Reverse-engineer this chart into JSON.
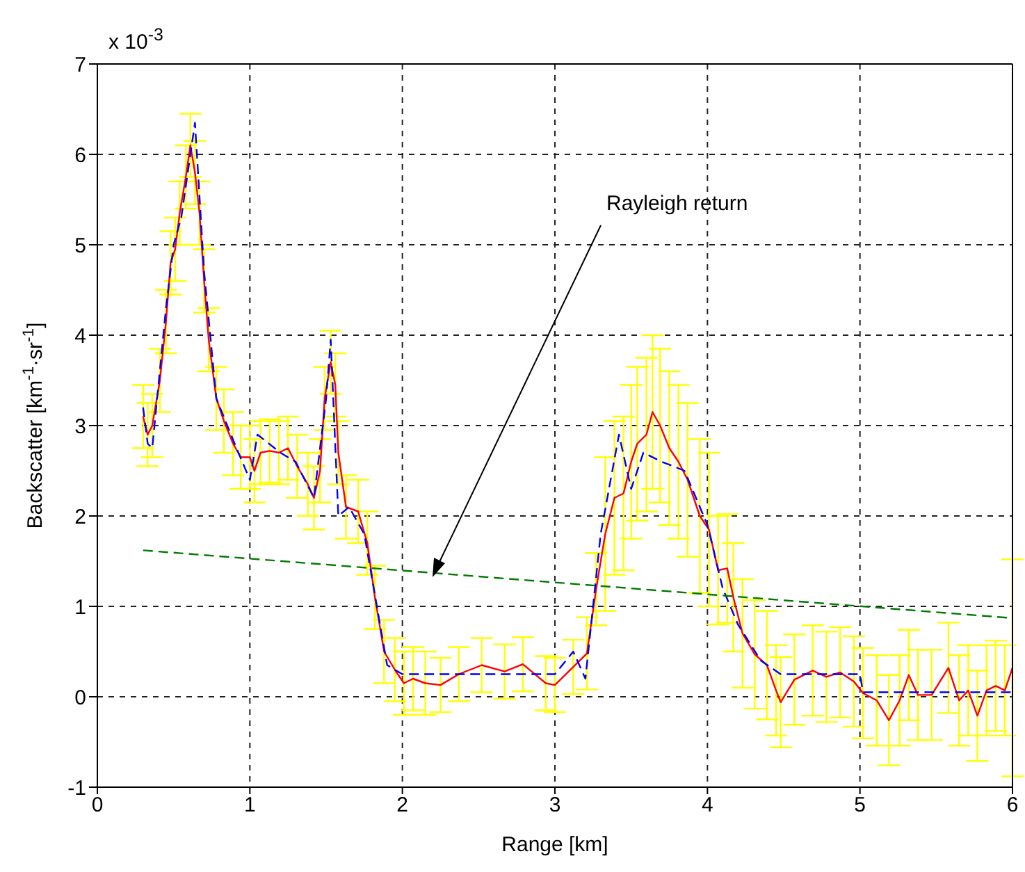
{
  "chart_data": {
    "type": "line",
    "xlabel": "Range [km]",
    "ylabel": "Backscatter [km$^{-1}$·sr$^{-1}$]",
    "xlim": [
      0,
      6
    ],
    "xticks": [
      0,
      1,
      2,
      3,
      4,
      5,
      6
    ],
    "ylim": [
      -1,
      7
    ],
    "yticks": [
      -1,
      0,
      1,
      2,
      3,
      4,
      5,
      6,
      7
    ],
    "grid": true,
    "marker": "none",
    "annotations": [
      "Rayleigh return",
      "x 10$^{-3}$"
    ],
    "series": [
      {
        "color": "#0000ff",
        "line_style": "dashed",
        "x": [
          0.3,
          0.33,
          0.36,
          0.45,
          0.5,
          0.55,
          0.64,
          0.7,
          0.78,
          0.9,
          1.0,
          1.05,
          1.2,
          1.3,
          1.42,
          1.5,
          1.53,
          1.58,
          1.65,
          1.75,
          1.9,
          2.0,
          3.0,
          3.12,
          3.2,
          3.3,
          3.42,
          3.5,
          3.58,
          3.7,
          3.85,
          4.0,
          4.1,
          4.2,
          4.35,
          4.48,
          5.0,
          5.02,
          6.0
        ],
        "values": [
          3.2,
          2.8,
          2.75,
          4.3,
          5.0,
          5.3,
          6.35,
          4.7,
          3.3,
          2.8,
          2.4,
          2.9,
          2.7,
          2.6,
          2.2,
          3.3,
          3.95,
          2.0,
          2.1,
          1.8,
          0.35,
          0.25,
          0.25,
          0.5,
          0.2,
          1.8,
          2.9,
          2.3,
          2.7,
          2.6,
          2.5,
          1.9,
          1.2,
          0.8,
          0.4,
          0.25,
          0.25,
          0.05,
          0.05
        ]
      },
      {
        "color": "#ff0000",
        "line_style": "solid",
        "x": [
          0.3,
          0.33,
          0.36,
          0.41,
          0.45,
          0.48,
          0.51,
          0.54,
          0.58,
          0.61,
          0.64,
          0.67,
          0.7,
          0.73,
          0.78,
          0.83,
          0.89,
          0.94,
          1.0,
          1.03,
          1.07,
          1.13,
          1.19,
          1.25,
          1.31,
          1.38,
          1.42,
          1.46,
          1.49,
          1.53,
          1.56,
          1.58,
          1.63,
          1.71,
          1.77,
          1.82,
          1.88,
          1.95,
          2.01,
          2.07,
          2.15,
          2.25,
          2.37,
          2.52,
          2.67,
          2.79,
          2.94,
          3.0,
          3.12,
          3.21,
          3.27,
          3.33,
          3.39,
          3.45,
          3.5,
          3.54,
          3.6,
          3.64,
          3.69,
          3.75,
          3.81,
          3.87,
          3.95,
          4.01,
          4.07,
          4.13,
          4.17,
          4.23,
          4.31,
          4.39,
          4.45,
          4.48,
          4.57,
          4.69,
          4.78,
          4.87,
          4.96,
          5.02,
          5.11,
          5.19,
          5.26,
          5.32,
          5.38,
          5.47,
          5.58,
          5.65,
          5.71,
          5.77,
          5.83,
          5.89,
          5.95,
          6.0
        ],
        "values": [
          3.1,
          2.9,
          3.0,
          3.5,
          4.15,
          4.8,
          4.95,
          5.35,
          5.75,
          6.1,
          5.8,
          5.35,
          4.6,
          3.95,
          3.3,
          3.05,
          2.8,
          2.65,
          2.65,
          2.5,
          2.7,
          2.72,
          2.7,
          2.75,
          2.55,
          2.35,
          2.2,
          2.5,
          3.3,
          3.7,
          3.45,
          2.7,
          2.1,
          2.05,
          1.7,
          1.1,
          0.5,
          0.3,
          0.15,
          0.2,
          0.15,
          0.13,
          0.25,
          0.35,
          0.28,
          0.36,
          0.15,
          0.13,
          0.33,
          0.48,
          1.19,
          1.8,
          2.2,
          2.25,
          2.6,
          2.8,
          2.9,
          3.15,
          3.0,
          2.75,
          2.6,
          2.4,
          2.0,
          1.85,
          1.4,
          1.42,
          1.1,
          0.7,
          0.47,
          0.35,
          0.07,
          -0.06,
          0.19,
          0.29,
          0.22,
          0.27,
          0.17,
          0.04,
          -0.04,
          -0.26,
          -0.04,
          0.24,
          0.02,
          0.02,
          0.32,
          -0.04,
          0.07,
          -0.21,
          0.07,
          0.12,
          0.07,
          0.32
        ],
        "errors": [
          0.35,
          0.35,
          0.35,
          0.35,
          0.35,
          0.35,
          0.35,
          0.35,
          0.35,
          0.35,
          0.35,
          0.35,
          0.35,
          0.35,
          0.35,
          0.35,
          0.35,
          0.35,
          0.35,
          0.35,
          0.35,
          0.35,
          0.35,
          0.35,
          0.35,
          0.35,
          0.35,
          0.35,
          0.35,
          0.35,
          0.35,
          0.35,
          0.35,
          0.35,
          0.35,
          0.35,
          0.35,
          0.35,
          0.35,
          0.35,
          0.35,
          0.3,
          0.3,
          0.3,
          0.3,
          0.3,
          0.3,
          0.3,
          0.3,
          0.4,
          0.4,
          0.85,
          0.85,
          0.85,
          0.85,
          0.85,
          0.85,
          0.85,
          0.85,
          0.85,
          0.85,
          0.85,
          0.85,
          0.85,
          0.6,
          0.6,
          0.6,
          0.6,
          0.6,
          0.6,
          0.5,
          0.5,
          0.5,
          0.5,
          0.5,
          0.5,
          0.5,
          0.5,
          0.5,
          0.5,
          0.5,
          0.5,
          0.5,
          0.5,
          0.5,
          0.5,
          0.5,
          0.5,
          0.5,
          0.5,
          0.5,
          1.2
        ]
      },
      {
        "color": "#007a00",
        "line_style": "dashed",
        "x": [
          0.3,
          6.0
        ],
        "values": [
          1.62,
          0.87
        ]
      }
    ]
  }
}
